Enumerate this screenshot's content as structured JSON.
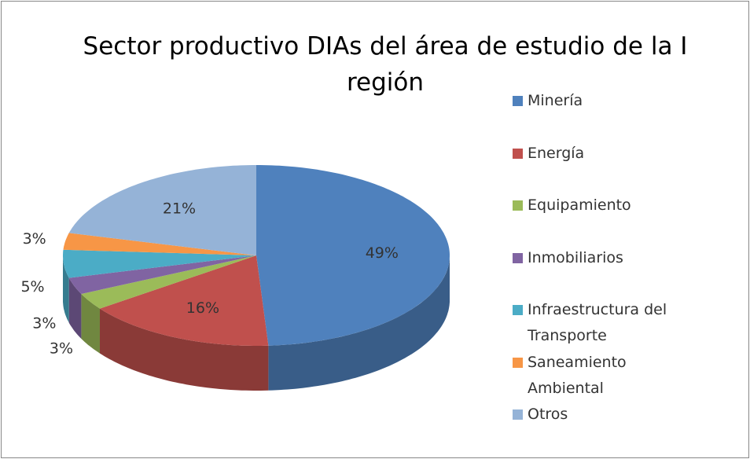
{
  "chart_data": {
    "type": "pie",
    "title": "Sector productivo DIAs del área de estudio de la I región",
    "categories": [
      "Minería",
      "Energía",
      "Equipamiento",
      "Inmobiliarios",
      "Infraestructura del Transporte",
      "Saneamiento Ambiental",
      "Otros"
    ],
    "values": [
      49,
      16,
      3,
      3,
      5,
      3,
      21
    ],
    "value_labels": [
      "49%",
      "16%",
      "3%",
      "3%",
      "5%",
      "3%",
      "21%"
    ],
    "colors": [
      "#4f81bd",
      "#c0504d",
      "#9bbb59",
      "#8064a2",
      "#4bacc6",
      "#f79646",
      "#95b3d7"
    ],
    "legend": "right"
  }
}
